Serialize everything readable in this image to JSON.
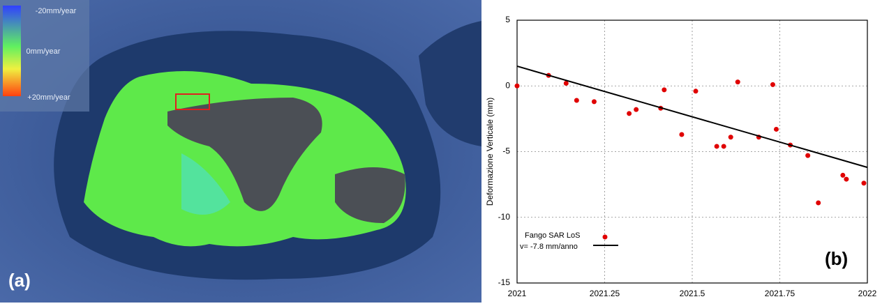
{
  "map": {
    "colorbar_labels": [
      "-20mm/year",
      "0mm/year",
      "+20mm/year"
    ],
    "panel_label": "(a)"
  },
  "chart_data": {
    "type": "scatter",
    "ylabel": "Deformazione Verticale (mm)",
    "panel_label": "(b)",
    "xlim": [
      2021,
      2022
    ],
    "xticks": [
      2021,
      2021.25,
      2021.5,
      2021.75,
      2022
    ],
    "ylim": [
      -15,
      5
    ],
    "yticks": [
      5,
      0,
      -5,
      -10,
      -15
    ],
    "grid": true,
    "series": [
      {
        "name": "Fango SAR LoS",
        "color": "#e00000",
        "mode": "markers",
        "x": [
          2021.0,
          2021.09,
          2021.14,
          2021.17,
          2021.22,
          2021.32,
          2021.34,
          2021.41,
          2021.42,
          2021.47,
          2021.51,
          2021.57,
          2021.59,
          2021.61,
          2021.63,
          2021.69,
          2021.73,
          2021.74,
          2021.78,
          2021.83,
          2021.86,
          2021.93,
          2021.94,
          2021.99
        ],
        "values": [
          0.0,
          0.8,
          0.2,
          -1.1,
          -1.2,
          -2.1,
          -1.8,
          -1.7,
          -0.3,
          -3.7,
          -0.4,
          -4.6,
          -4.6,
          -3.9,
          0.3,
          -3.9,
          0.1,
          -3.3,
          -4.5,
          -5.3,
          -8.9,
          -6.8,
          -7.1,
          -7.4
        ]
      },
      {
        "name": "v= -7.8 mm/anno",
        "color": "#000000",
        "mode": "line",
        "x": [
          2021,
          2022
        ],
        "values": [
          1.5,
          -6.2
        ]
      }
    ]
  }
}
